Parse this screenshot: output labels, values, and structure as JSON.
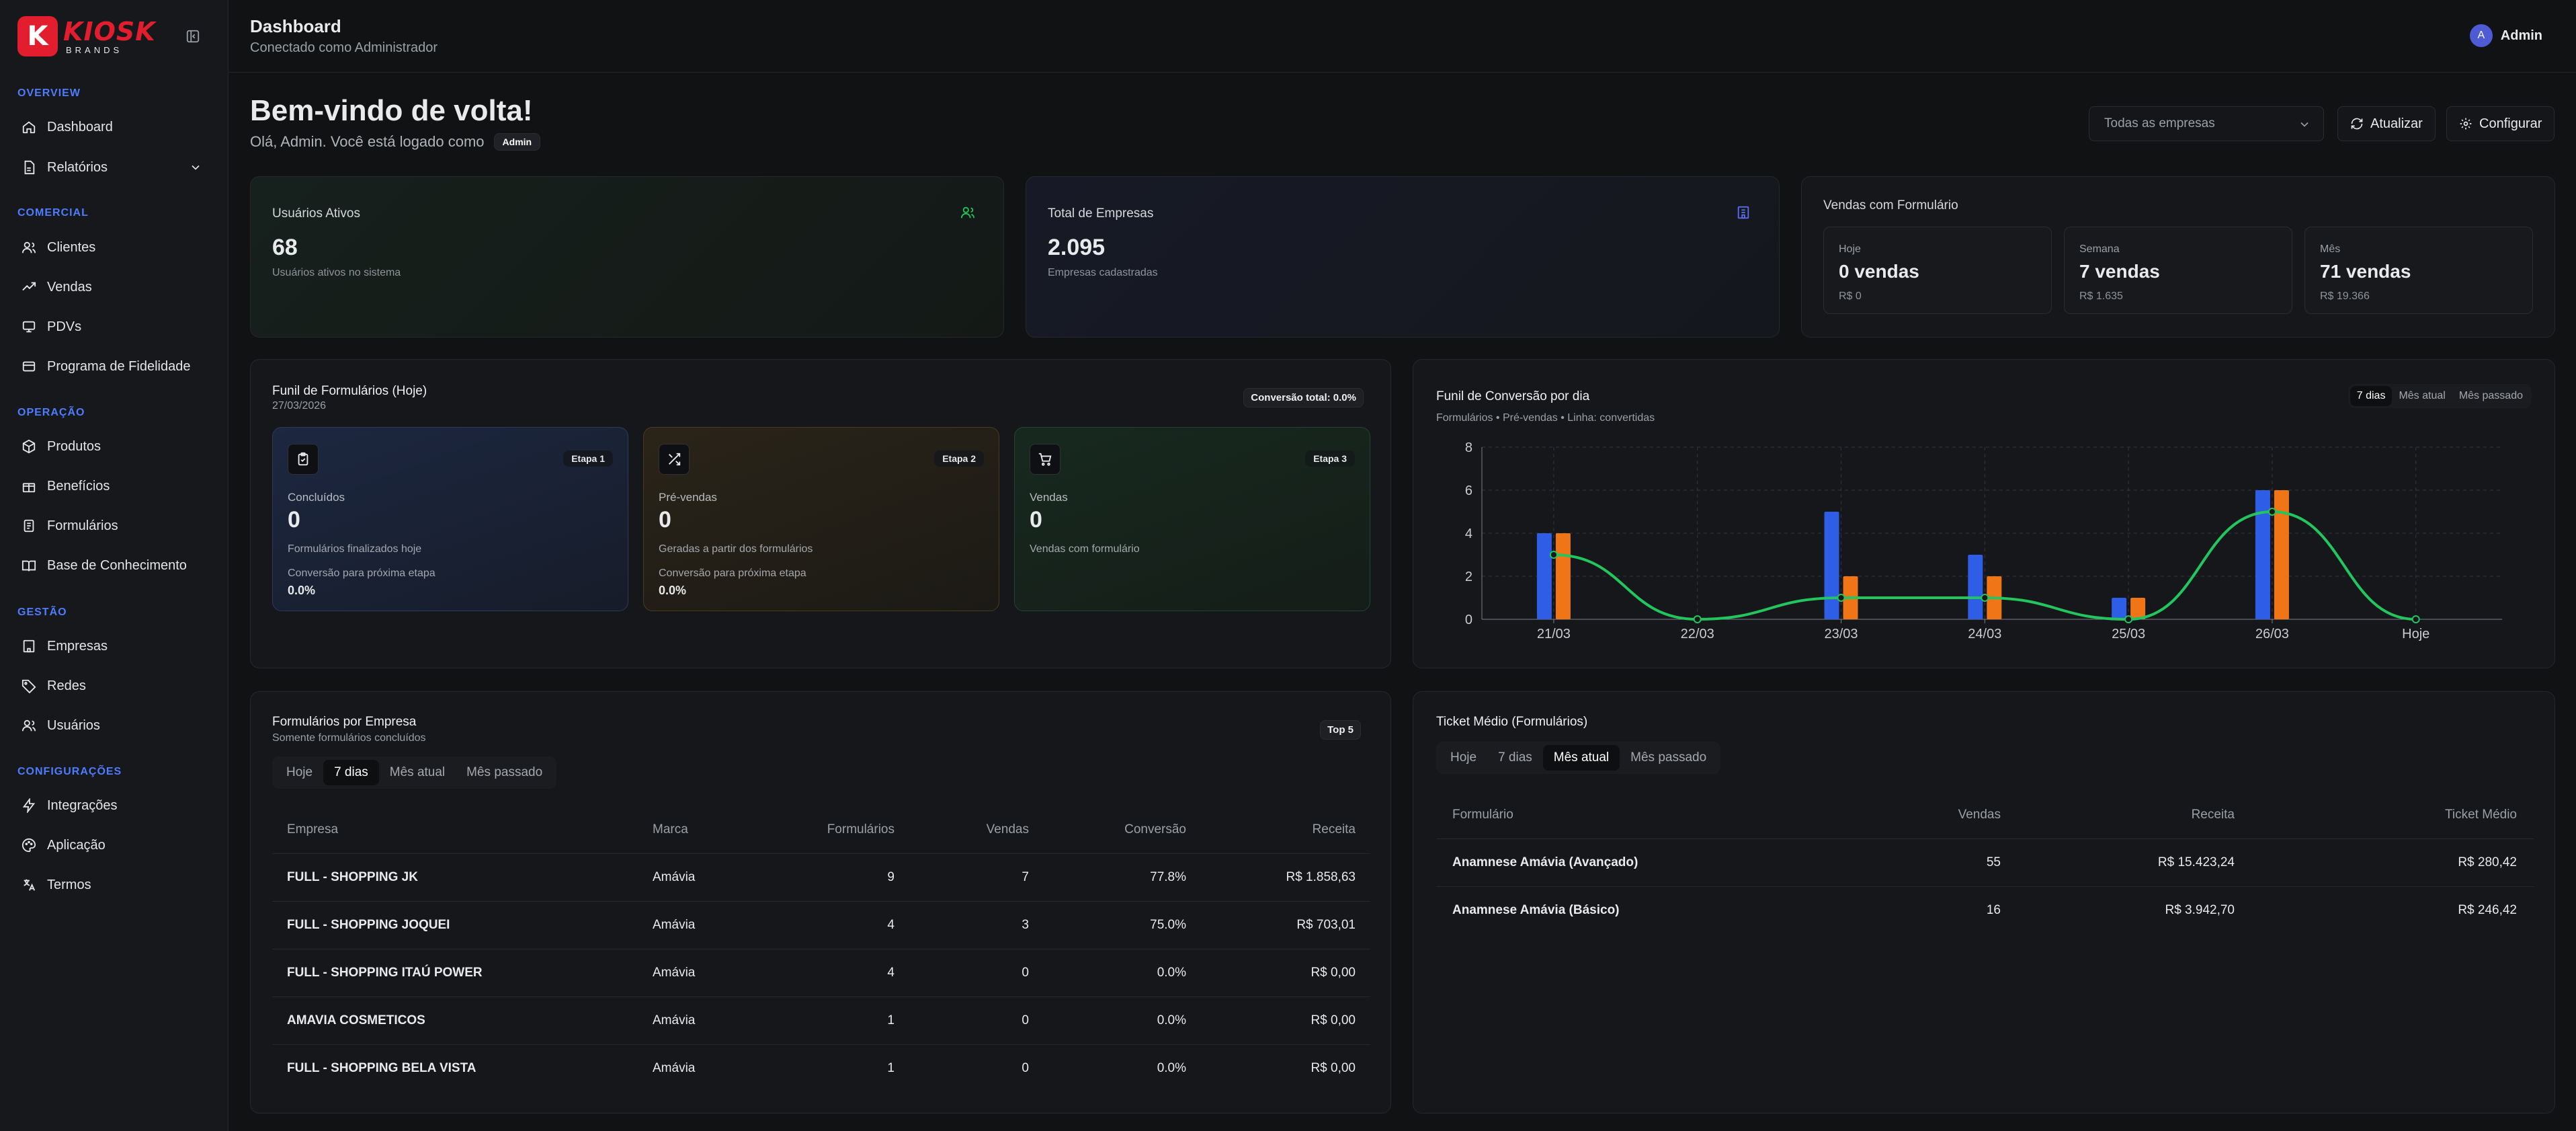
{
  "brand": {
    "main": "KIOSK",
    "sub": "BRANDS",
    "letter": "K",
    "color": "#e11d2e"
  },
  "sidebar": {
    "sections": [
      {
        "label": "OVERVIEW",
        "items": [
          {
            "label": "Dashboard",
            "icon": "home-icon"
          },
          {
            "label": "Relatórios",
            "icon": "report-icon",
            "expandable": true
          }
        ]
      },
      {
        "label": "COMERCIAL",
        "items": [
          {
            "label": "Clientes",
            "icon": "users-icon"
          },
          {
            "label": "Vendas",
            "icon": "trend-icon"
          },
          {
            "label": "PDVs",
            "icon": "monitor-icon"
          },
          {
            "label": "Programa de Fidelidade",
            "icon": "loyalty-icon"
          }
        ]
      },
      {
        "label": "OPERAÇÃO",
        "items": [
          {
            "label": "Produtos",
            "icon": "box-icon"
          },
          {
            "label": "Benefícios",
            "icon": "gift-icon"
          },
          {
            "label": "Formulários",
            "icon": "form-icon"
          },
          {
            "label": "Base de Conhecimento",
            "icon": "book-icon"
          }
        ]
      },
      {
        "label": "GESTÃO",
        "items": [
          {
            "label": "Empresas",
            "icon": "building-icon"
          },
          {
            "label": "Redes",
            "icon": "tag-icon"
          },
          {
            "label": "Usuários",
            "icon": "users-icon"
          }
        ]
      },
      {
        "label": "CONFIGURAÇÕES",
        "items": [
          {
            "label": "Integrações",
            "icon": "zap-icon"
          },
          {
            "label": "Aplicação",
            "icon": "palette-icon"
          },
          {
            "label": "Termos",
            "icon": "translate-icon"
          }
        ]
      }
    ]
  },
  "header": {
    "title": "Dashboard",
    "subtitle": "Conectado como Administrador",
    "user_initial": "A",
    "user_name": "Admin"
  },
  "welcome": {
    "title": "Bem-vindo de volta!",
    "subtitle": "Olá, Admin. Você está logado como",
    "role": "Admin"
  },
  "toolbar": {
    "company_select": "Todas as empresas",
    "refresh": "Atualizar",
    "configure": "Configurar"
  },
  "stats": {
    "active_users": {
      "title": "Usuários Ativos",
      "value": "68",
      "sub": "Usuários ativos no sistema"
    },
    "companies": {
      "title": "Total de Empresas",
      "value": "2.095",
      "sub": "Empresas cadastradas"
    },
    "form_sales": {
      "title": "Vendas com Formulário",
      "periods": [
        {
          "label": "Hoje",
          "value": "0 vendas",
          "sub": "R$ 0"
        },
        {
          "label": "Semana",
          "value": "7 vendas",
          "sub": "R$ 1.635"
        },
        {
          "label": "Mês",
          "value": "71 vendas",
          "sub": "R$ 19.366"
        }
      ]
    }
  },
  "funnel": {
    "title": "Funil de Formulários (Hoje)",
    "date": "27/03/2026",
    "conversion_total": "Conversão total: 0.0%",
    "stages": [
      {
        "etapa": "Etapa 1",
        "label": "Concluídos",
        "value": "0",
        "desc": "Formulários finalizados hoje",
        "conv_label": "Conversão para próxima etapa",
        "conv_value": "0.0%",
        "icon": "clipboard-check-icon"
      },
      {
        "etapa": "Etapa 2",
        "label": "Pré-vendas",
        "value": "0",
        "desc": "Geradas a partir dos formulários",
        "conv_label": "Conversão para próxima etapa",
        "conv_value": "0.0%",
        "icon": "shuffle-icon"
      },
      {
        "etapa": "Etapa 3",
        "label": "Vendas",
        "value": "0",
        "desc": "Vendas com formulário",
        "icon": "cart-icon"
      }
    ]
  },
  "chart_data": {
    "type": "bar",
    "title": "Funil de Conversão por dia",
    "subtitle": "Formulários • Pré-vendas • Linha: convertidas",
    "tabs": [
      "7 dias",
      "Mês atual",
      "Mês passado"
    ],
    "active_tab": "7 dias",
    "categories": [
      "21/03",
      "22/03",
      "23/03",
      "24/03",
      "25/03",
      "26/03",
      "Hoje"
    ],
    "ylim": [
      0,
      8
    ],
    "yticks": [
      0,
      2,
      4,
      6,
      8
    ],
    "grid": true,
    "series": [
      {
        "name": "Formulários",
        "values": [
          4,
          0,
          5,
          3,
          1,
          6,
          0
        ],
        "color": "#2f5ee6"
      },
      {
        "name": "Pré-vendas",
        "values": [
          4,
          0,
          2,
          2,
          1,
          6,
          0
        ],
        "color": "#f07516"
      },
      {
        "name": "convertidas",
        "values": [
          3,
          0,
          1,
          1,
          0,
          5,
          0
        ],
        "color": "#22c55e",
        "kind": "line"
      }
    ]
  },
  "forms_by_company": {
    "title": "Formulários por Empresa",
    "subtitle": "Somente formulários concluídos",
    "badge": "Top 5",
    "tabs": [
      "Hoje",
      "7 dias",
      "Mês atual",
      "Mês passado"
    ],
    "active_tab": "7 dias",
    "columns": [
      "Empresa",
      "Marca",
      "Formulários",
      "Vendas",
      "Conversão",
      "Receita"
    ],
    "rows": [
      [
        "FULL - SHOPPING JK",
        "Amávia",
        "9",
        "7",
        "77.8%",
        "R$ 1.858,63"
      ],
      [
        "FULL - SHOPPING JOQUEI",
        "Amávia",
        "4",
        "3",
        "75.0%",
        "R$ 703,01"
      ],
      [
        "FULL - SHOPPING ITAÚ POWER",
        "Amávia",
        "4",
        "0",
        "0.0%",
        "R$ 0,00"
      ],
      [
        "AMAVIA COSMETICOS",
        "Amávia",
        "1",
        "0",
        "0.0%",
        "R$ 0,00"
      ],
      [
        "FULL - SHOPPING BELA VISTA",
        "Amávia",
        "1",
        "0",
        "0.0%",
        "R$ 0,00"
      ]
    ]
  },
  "ticket": {
    "title": "Ticket Médio (Formulários)",
    "tabs": [
      "Hoje",
      "7 dias",
      "Mês atual",
      "Mês passado"
    ],
    "active_tab": "Mês atual",
    "columns": [
      "Formulário",
      "Vendas",
      "Receita",
      "Ticket Médio"
    ],
    "rows": [
      [
        "Anamnese Amávia (Avançado)",
        "55",
        "R$ 15.423,24",
        "R$ 280,42"
      ],
      [
        "Anamnese Amávia (Básico)",
        "16",
        "R$ 3.942,70",
        "R$ 246,42"
      ]
    ]
  }
}
